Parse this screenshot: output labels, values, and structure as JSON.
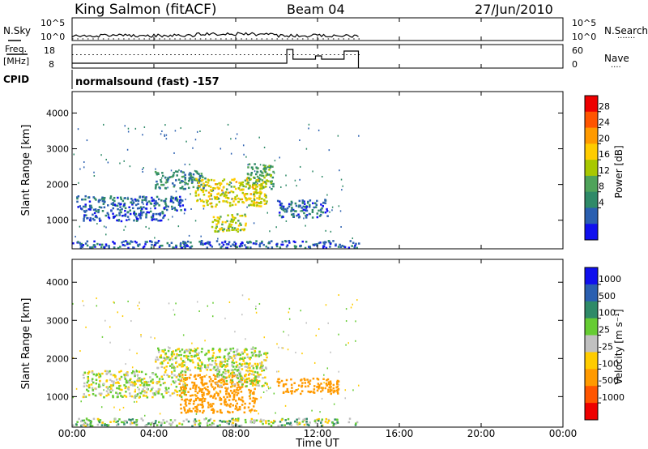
{
  "header": {
    "station": "King Salmon (fitACF)",
    "beam": "Beam 04",
    "date": "27/Jun/2010"
  },
  "nsky_panel": {
    "left_label": "N.Sky",
    "left_ticks": [
      "10^5",
      "10^0"
    ],
    "right_ticks": [
      "10^5",
      "10^0"
    ],
    "right_label": "N.Search",
    "right_legend_marker": "·······"
  },
  "freq_panel": {
    "left_label_top": "Freq.",
    "left_label_bottom": "[MHz]",
    "left_ticks": [
      "18",
      "8"
    ],
    "right_ticks": [
      "60",
      "0"
    ],
    "right_label": "Nave",
    "right_legend_marker": "····"
  },
  "cpid": {
    "label": "CPID",
    "value": "normalsound (fast) -157"
  },
  "axes": {
    "x_ticks": [
      "00:00",
      "04:00",
      "08:00",
      "12:00",
      "16:00",
      "20:00",
      "00:00"
    ],
    "x_label": "Time UT",
    "y_ticks": [
      "1000",
      "2000",
      "3000",
      "4000"
    ],
    "y_label": "Slant Range [km]"
  },
  "power_colorbar": {
    "label": "Power [dB]",
    "ticks": [
      "28",
      "24",
      "20",
      "16",
      "12",
      "8",
      "4"
    ],
    "colors": [
      "#ee0000",
      "#ff5500",
      "#ff9a00",
      "#ffcc00",
      "#a8c800",
      "#4fa35a",
      "#2f8a68",
      "#2a5fb0",
      "#1010ee"
    ]
  },
  "velocity_colorbar": {
    "label": "Velocity [m s⁻¹]",
    "ticks": [
      "1000",
      "500",
      "100",
      "25",
      "-25",
      "-100",
      "-500",
      "-1000"
    ],
    "colors": [
      "#1010ee",
      "#2a5fb0",
      "#2f8a68",
      "#66cc33",
      "#c0c0c0",
      "#ffcc00",
      "#ff9a00",
      "#ff5500",
      "#ee0000"
    ]
  },
  "chart_data": [
    {
      "type": "heatmap",
      "name": "power",
      "xlabel": "Time UT",
      "ylabel": "Slant Range [km]",
      "xlim": [
        0,
        24
      ],
      "ylim": [
        200,
        4600
      ],
      "colorbar_label": "Power [dB]",
      "colorbar_range": [
        0,
        32
      ],
      "description_of_regions": "Scatter from 00:00 to ~14:00; strongest (16-24 dB) arc between 06:00-10:00 at 700-2300 km",
      "features": [
        {
          "x": [
            0.2,
            5.5
          ],
          "y": [
            1300,
            1700
          ],
          "value": 6
        },
        {
          "x": [
            0.5,
            4.5
          ],
          "y": [
            1000,
            1300
          ],
          "value": 5
        },
        {
          "x": [
            4.0,
            6.5
          ],
          "y": [
            1900,
            2400
          ],
          "value": 9
        },
        {
          "x": [
            6.0,
            9.5
          ],
          "y": [
            1400,
            2200
          ],
          "value": 18
        },
        {
          "x": [
            6.8,
            8.5
          ],
          "y": [
            700,
            1200
          ],
          "value": 16
        },
        {
          "x": [
            8.5,
            9.8
          ],
          "y": [
            1900,
            2600
          ],
          "value": 12
        },
        {
          "x": [
            10.0,
            12.5
          ],
          "y": [
            1100,
            1600
          ],
          "value": 6
        },
        {
          "x": [
            0,
            14.0
          ],
          "y": [
            250,
            450
          ],
          "value": 5
        }
      ]
    },
    {
      "type": "heatmap",
      "name": "velocity",
      "xlabel": "Time UT",
      "ylabel": "Slant Range [km]",
      "xlim": [
        0,
        24
      ],
      "ylim": [
        200,
        4600
      ],
      "colorbar_label": "Velocity [m s⁻¹]",
      "features": [
        {
          "x": [
            0.5,
            5.5
          ],
          "y": [
            1000,
            1700
          ],
          "value": 0
        },
        {
          "x": [
            4.0,
            9.5
          ],
          "y": [
            1700,
            2300
          ],
          "value": 0
        },
        {
          "x": [
            5.2,
            9.0
          ],
          "y": [
            600,
            1600
          ],
          "value": -400
        },
        {
          "x": [
            7.0,
            9.5
          ],
          "y": [
            1300,
            1900
          ],
          "value": 0
        },
        {
          "x": [
            10.0,
            13.0
          ],
          "y": [
            1100,
            1500
          ],
          "value": -300
        },
        {
          "x": [
            0,
            14.0
          ],
          "y": [
            250,
            450
          ],
          "value": 50
        }
      ]
    }
  ]
}
